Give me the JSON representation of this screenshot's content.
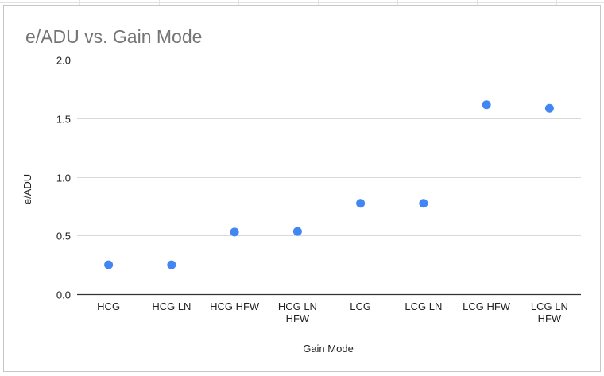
{
  "chart_data": {
    "type": "scatter",
    "title": "e/ADU vs. Gain Mode",
    "xlabel": "Gain Mode",
    "ylabel": "e/ADU",
    "ylim": [
      0,
      2.0
    ],
    "yticks": [
      "0.0",
      "0.5",
      "1.0",
      "1.5",
      "2.0"
    ],
    "ytick_values": [
      0,
      0.5,
      1.0,
      1.5,
      2.0
    ],
    "grid": true,
    "legend": "none",
    "categories": [
      [
        "HCG"
      ],
      [
        "HCG LN"
      ],
      [
        "HCG HFW"
      ],
      [
        "HCG LN",
        "HFW"
      ],
      [
        "LCG"
      ],
      [
        "LCG LN"
      ],
      [
        "LCG HFW"
      ],
      [
        "LCG LN",
        "HFW"
      ]
    ],
    "values": [
      0.25,
      0.25,
      0.53,
      0.535,
      0.775,
      0.775,
      1.615,
      1.585
    ],
    "colors": {
      "point": "#4285f4",
      "grid": "#d9d9d9",
      "axis": "#333333"
    }
  }
}
